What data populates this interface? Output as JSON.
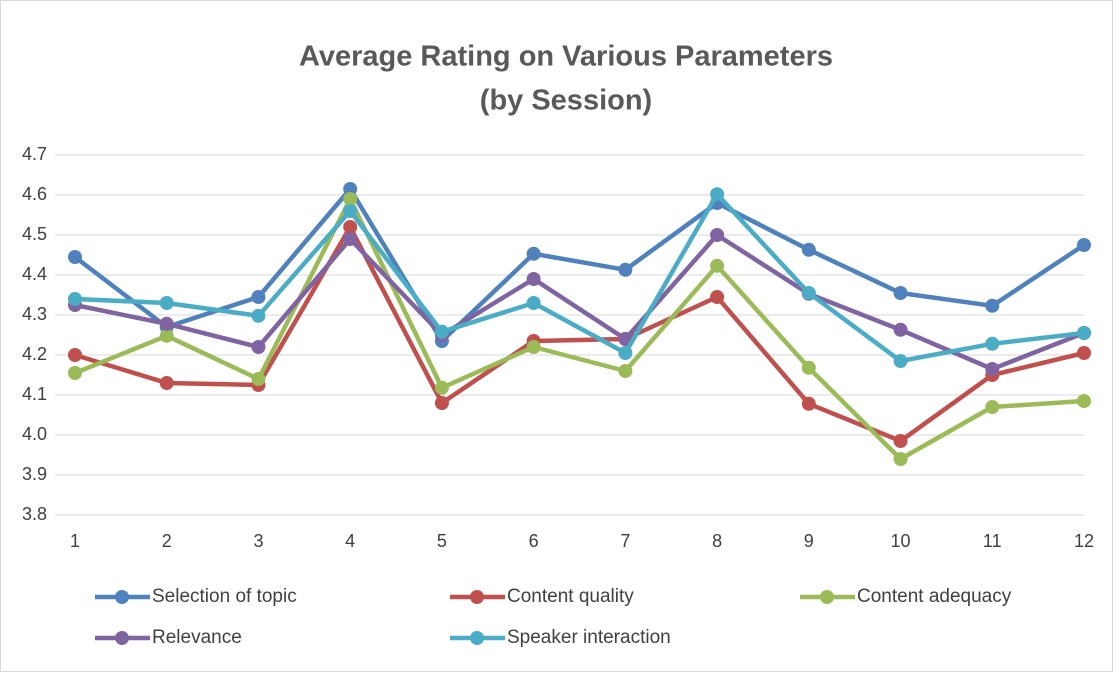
{
  "chart_data": {
    "type": "line",
    "title": [
      "Average Rating on Various Parameters",
      "(by Session)"
    ],
    "categories": [
      1,
      2,
      3,
      4,
      5,
      6,
      7,
      8,
      9,
      10,
      11,
      12
    ],
    "ylim": [
      3.8,
      4.7
    ],
    "yticks": [
      3.8,
      3.9,
      {
        "value": 4,
        "label": "4.0"
      },
      4.1,
      4.2,
      4.3,
      4.4,
      4.5,
      4.6,
      4.7
    ],
    "grid": true,
    "legend": "bottom",
    "series": [
      {
        "name": "Selection of topic",
        "color": "#4f81bd",
        "values": [
          4.445,
          4.27,
          4.345,
          4.615,
          4.235,
          4.453,
          4.413,
          4.58,
          4.463,
          4.355,
          4.323,
          4.475
        ]
      },
      {
        "name": "Content quality",
        "color": "#c0504d",
        "values": [
          4.2,
          4.13,
          4.125,
          4.52,
          4.08,
          4.235,
          4.24,
          4.345,
          4.078,
          3.985,
          4.15,
          4.205
        ]
      },
      {
        "name": "Content adequacy",
        "color": "#9bbb59",
        "values": [
          4.155,
          4.248,
          4.14,
          4.59,
          4.118,
          4.22,
          4.16,
          4.423,
          4.168,
          3.94,
          4.07,
          4.085
        ]
      },
      {
        "name": "Relevance",
        "color": "#8064a2",
        "values": [
          4.325,
          4.278,
          4.22,
          4.49,
          4.25,
          4.39,
          4.24,
          4.5,
          4.353,
          4.263,
          4.165,
          4.255
        ]
      },
      {
        "name": "Speaker interaction",
        "color": "#4bacc6",
        "values": [
          4.34,
          4.33,
          4.298,
          4.56,
          4.258,
          4.33,
          4.205,
          4.602,
          4.355,
          4.185,
          4.228,
          4.255
        ]
      }
    ]
  }
}
